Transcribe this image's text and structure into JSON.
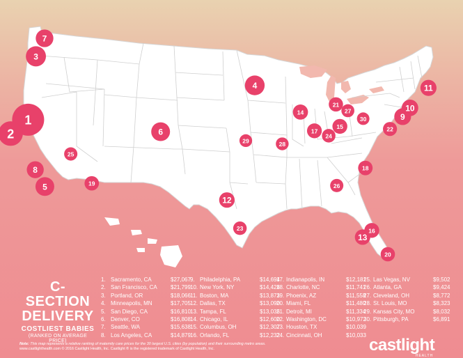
{
  "title": {
    "line1": "C-SECTION",
    "line2": "DELIVERY",
    "line3": "COSTLIEST BABIES",
    "line4": "(RANKED ON AVERAGE PRICE)"
  },
  "colors": {
    "bubble": "#e8416a",
    "land": "#ffffff",
    "border": "#c9c9c9"
  },
  "markers": [
    {
      "rank": "1",
      "city": "Sacramento, CA",
      "lon": -121.49,
      "lat": 38.58,
      "price": 27067
    },
    {
      "rank": "2",
      "city": "San Francisco, CA",
      "lon": -122.42,
      "lat": 37.77,
      "price": 21799
    },
    {
      "rank": "3",
      "city": "Portland, OR",
      "lon": -122.68,
      "lat": 45.52,
      "price": 18066
    },
    {
      "rank": "4",
      "city": "Minneapolis, MN",
      "lon": -93.27,
      "lat": 44.98,
      "price": 17705
    },
    {
      "rank": "5",
      "city": "San Diego, CA",
      "lon": -117.16,
      "lat": 32.72,
      "price": 16810
    },
    {
      "rank": "6",
      "city": "Denver, CO",
      "lon": -104.99,
      "lat": 39.74,
      "price": 16808
    },
    {
      "rank": "7",
      "city": "Seattle, WA",
      "lon": -122.33,
      "lat": 47.61,
      "price": 15638
    },
    {
      "rank": "8",
      "city": "Los Angeles, CA",
      "lon": -118.24,
      "lat": 34.05,
      "price": 14879
    },
    {
      "rank": "9",
      "city": "Philadelphia, PA",
      "lon": -75.17,
      "lat": 39.95,
      "price": 14694
    },
    {
      "rank": "10",
      "city": "New York, NY",
      "lon": -74.01,
      "lat": 40.71,
      "price": 14428
    },
    {
      "rank": "11",
      "city": "Boston, MA",
      "lon": -71.06,
      "lat": 42.36,
      "price": 13873
    },
    {
      "rank": "12",
      "city": "Dallas, TX",
      "lon": -96.8,
      "lat": 32.78,
      "price": 13090
    },
    {
      "rank": "13",
      "city": "Tampa, FL",
      "lon": -82.46,
      "lat": 27.95,
      "price": 13035
    },
    {
      "rank": "14",
      "city": "Chicago, IL",
      "lon": -87.63,
      "lat": 41.88,
      "price": 12600
    },
    {
      "rank": "15",
      "city": "Columbus, OH",
      "lon": -82.99,
      "lat": 39.96,
      "price": 12307
    },
    {
      "rank": "16",
      "city": "Orlando, FL",
      "lon": -81.38,
      "lat": 28.54,
      "price": 12232
    },
    {
      "rank": "17",
      "city": "Indianapolis, IN",
      "lon": -86.16,
      "lat": 39.77,
      "price": 12181
    },
    {
      "rank": "18",
      "city": "Charlotte, NC",
      "lon": -80.84,
      "lat": 35.23,
      "price": 11741
    },
    {
      "rank": "19",
      "city": "Phoenix, AZ",
      "lon": -112.07,
      "lat": 33.45,
      "price": 11558
    },
    {
      "rank": "20",
      "city": "Miami, FL",
      "lon": -80.19,
      "lat": 25.76,
      "price": 11480
    },
    {
      "rank": "21",
      "city": "Detroit, MI",
      "lon": -83.05,
      "lat": 42.33,
      "price": 11334
    },
    {
      "rank": "22",
      "city": "Washington, DC",
      "lon": -77.04,
      "lat": 38.91,
      "price": 10972
    },
    {
      "rank": "23",
      "city": "Houston, TX",
      "lon": -95.37,
      "lat": 29.76,
      "price": 10039
    },
    {
      "rank": "24",
      "city": "Cincinnati, OH",
      "lon": -84.51,
      "lat": 39.1,
      "price": 10033
    },
    {
      "rank": "25",
      "city": "Las Vegas, NV",
      "lon": -115.14,
      "lat": 36.17,
      "price": 9502
    },
    {
      "rank": "26",
      "city": "Atlanta, GA",
      "lon": -84.39,
      "lat": 33.75,
      "price": 9424
    },
    {
      "rank": "27",
      "city": "Cleveland, OH",
      "lon": -81.69,
      "lat": 41.5,
      "price": 8772
    },
    {
      "rank": "28",
      "city": "St. Louis, MO",
      "lon": -90.2,
      "lat": 38.63,
      "price": 8323
    },
    {
      "rank": "29",
      "city": "Kansas City, MO",
      "lon": -94.58,
      "lat": 39.1,
      "price": 8032
    },
    {
      "rank": "30",
      "city": "Pittsburgh, PA",
      "lon": -79.99,
      "lat": 40.44,
      "price": 6891
    }
  ],
  "ranking": [
    {
      "rank": "1.",
      "city": "Sacramento, CA",
      "price": "$27,067"
    },
    {
      "rank": "2.",
      "city": "San Francisco, CA",
      "price": "$21,799"
    },
    {
      "rank": "3.",
      "city": "Portland, OR",
      "price": "$18,066"
    },
    {
      "rank": "4.",
      "city": "Minneapolis, MN",
      "price": "$17,705"
    },
    {
      "rank": "5.",
      "city": "San Diego, CA",
      "price": "$16,810"
    },
    {
      "rank": "6.",
      "city": "Denver, CO",
      "price": "$16,808"
    },
    {
      "rank": "7.",
      "city": "Seattle, WA",
      "price": "$15,638"
    },
    {
      "rank": "8.",
      "city": "Los Angeles, CA",
      "price": "$14,879"
    },
    {
      "rank": "9.",
      "city": "Philadelphia, PA",
      "price": "$14,694"
    },
    {
      "rank": "10.",
      "city": "New York, NY",
      "price": "$14,428"
    },
    {
      "rank": "11.",
      "city": "Boston, MA",
      "price": "$13,873"
    },
    {
      "rank": "12.",
      "city": "Dallas, TX",
      "price": "$13,090"
    },
    {
      "rank": "13.",
      "city": "Tampa, FL",
      "price": "$13,035"
    },
    {
      "rank": "14.",
      "city": "Chicago, IL",
      "price": "$12,600"
    },
    {
      "rank": "15.",
      "city": "Columbus, OH",
      "price": "$12,307"
    },
    {
      "rank": "16.",
      "city": "Orlando, FL",
      "price": "$12,232"
    },
    {
      "rank": "17.",
      "city": "Indianapolis, IN",
      "price": "$12,181"
    },
    {
      "rank": "18.",
      "city": "Charlotte, NC",
      "price": "$11,741"
    },
    {
      "rank": "19.",
      "city": "Phoenix, AZ",
      "price": "$11,558"
    },
    {
      "rank": "20.",
      "city": "Miami, FL",
      "price": "$11,480"
    },
    {
      "rank": "21.",
      "city": "Detroit, MI",
      "price": "$11,334"
    },
    {
      "rank": "22.",
      "city": "Washington, DC",
      "price": "$10,972"
    },
    {
      "rank": "23.",
      "city": "Houston, TX",
      "price": "$10,039"
    },
    {
      "rank": "24.",
      "city": "Cincinnati, OH",
      "price": "$10,033"
    },
    {
      "rank": "25.",
      "city": "Las Vegas, NV",
      "price": "$9,502"
    },
    {
      "rank": "26.",
      "city": "Atlanta, GA",
      "price": "$9,424"
    },
    {
      "rank": "27.",
      "city": "Cleveland, OH",
      "price": "$8,772"
    },
    {
      "rank": "28.",
      "city": "St. Louis, MO",
      "price": "$8,323"
    },
    {
      "rank": "29.",
      "city": "Kansas City, MO",
      "price": "$8,032"
    },
    {
      "rank": "30.",
      "city": "Pittsburgh, PA",
      "price": "$6,891"
    }
  ],
  "footnote": {
    "note_label": "Note:",
    "note_text": "This map represents a relative ranking of maternity care prices for the 30 largest U.S. cities (by population) and their surrounding metro areas.",
    "copyright": "www.castlighthealth.com © 2016 Castlight Health, Inc. Castlight ® is the registered trademark of Castlight Health, Inc."
  },
  "logo": {
    "text": "castlight",
    "sub": "HEALTH"
  }
}
